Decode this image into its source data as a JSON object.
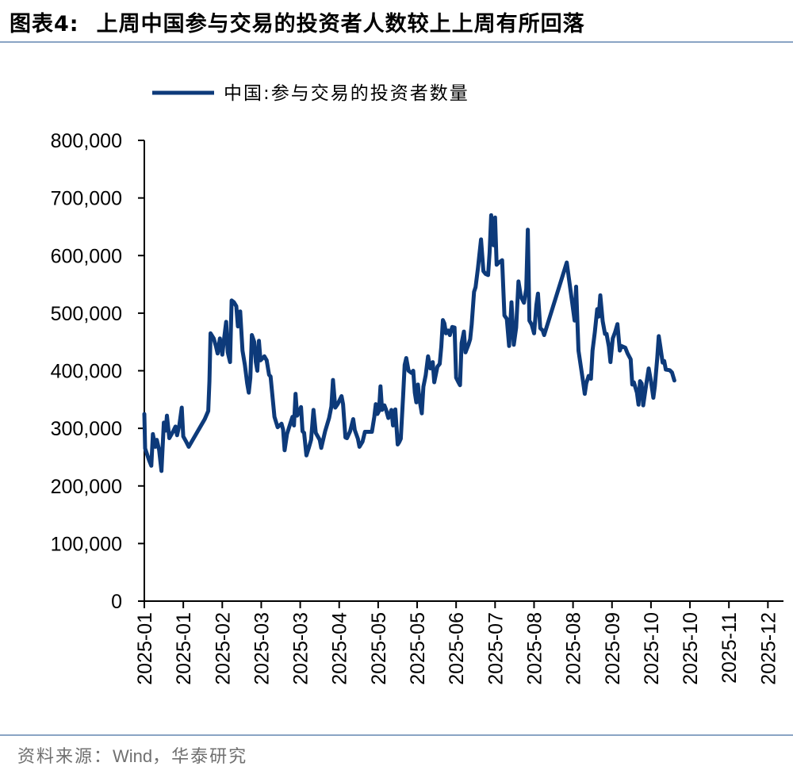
{
  "header": {
    "label": "图表4:",
    "title": "上周中国参与交易的投资者人数较上上周有所回落"
  },
  "footer": {
    "prefix": "资料来源：",
    "source_name": "Wind",
    "sep": "，",
    "org": "华泰研究"
  },
  "colors": {
    "series": "#0d3a7a",
    "axis": "#000000",
    "rule": "#8aa4c4"
  },
  "chart_data": {
    "type": "line",
    "title": "上周中国参与交易的投资者人数较上上周有所回落",
    "xlabel": "",
    "ylabel": "",
    "ylim": [
      0,
      800000
    ],
    "yticks": [
      0,
      100000,
      200000,
      300000,
      400000,
      500000,
      600000,
      700000,
      800000
    ],
    "ytick_labels": [
      "0",
      "100,000",
      "200,000",
      "300,000",
      "400,000",
      "500,000",
      "600,000",
      "700,000",
      "800,000"
    ],
    "xtick_labels": [
      "2025-01",
      "2025-01",
      "2025-02",
      "2025-03",
      "2025-03",
      "2025-04",
      "2025-05",
      "2025-05",
      "2025-06",
      "2025-07",
      "2025-08",
      "2025-08",
      "2025-09",
      "2025-10",
      "2025-10",
      "2025-11",
      "2025-12"
    ],
    "legend": {
      "position": "top-left",
      "entries": [
        "中国:参与交易的投资者数量"
      ]
    },
    "series": [
      {
        "name": "中国:参与交易的投资者数量",
        "x_range": [
          0,
          16.4
        ],
        "values": [
          [
            0.0,
            325000
          ],
          [
            0.02,
            265000
          ],
          [
            0.12,
            245000
          ],
          [
            0.18,
            235000
          ],
          [
            0.22,
            290000
          ],
          [
            0.28,
            268000
          ],
          [
            0.32,
            280000
          ],
          [
            0.38,
            262000
          ],
          [
            0.44,
            226000
          ],
          [
            0.5,
            310000
          ],
          [
            0.55,
            296000
          ],
          [
            0.58,
            322000
          ],
          [
            0.64,
            283000
          ],
          [
            0.74,
            295000
          ],
          [
            0.8,
            303000
          ],
          [
            0.84,
            288000
          ],
          [
            0.9,
            306000
          ],
          [
            0.96,
            336000
          ],
          [
            1.0,
            286000
          ],
          [
            1.08,
            276000
          ],
          [
            1.14,
            268000
          ],
          [
            1.55,
            316000
          ],
          [
            1.64,
            330000
          ],
          [
            1.67,
            382000
          ],
          [
            1.7,
            465000
          ],
          [
            1.78,
            456000
          ],
          [
            1.84,
            442000
          ],
          [
            1.88,
            430000
          ],
          [
            1.94,
            456000
          ],
          [
            2.0,
            428000
          ],
          [
            2.04,
            452000
          ],
          [
            2.1,
            485000
          ],
          [
            2.14,
            432000
          ],
          [
            2.2,
            415000
          ],
          [
            2.24,
            522000
          ],
          [
            2.3,
            519000
          ],
          [
            2.36,
            512000
          ],
          [
            2.4,
            477000
          ],
          [
            2.46,
            503000
          ],
          [
            2.52,
            435000
          ],
          [
            2.58,
            410000
          ],
          [
            2.64,
            378000
          ],
          [
            2.68,
            362000
          ],
          [
            2.72,
            388000
          ],
          [
            2.76,
            462000
          ],
          [
            2.82,
            450000
          ],
          [
            2.86,
            415000
          ],
          [
            2.9,
            400000
          ],
          [
            2.94,
            452000
          ],
          [
            2.98,
            418000
          ],
          [
            3.04,
            422000
          ],
          [
            3.08,
            425000
          ],
          [
            3.14,
            418000
          ],
          [
            3.2,
            393000
          ],
          [
            3.24,
            390000
          ],
          [
            3.34,
            320000
          ],
          [
            3.42,
            302000
          ],
          [
            3.52,
            308000
          ],
          [
            3.56,
            298000
          ],
          [
            3.6,
            262000
          ],
          [
            3.66,
            290000
          ],
          [
            3.74,
            307000
          ],
          [
            3.8,
            320000
          ],
          [
            3.84,
            305000
          ],
          [
            3.88,
            360000
          ],
          [
            3.92,
            322000
          ],
          [
            3.98,
            330000
          ],
          [
            4.02,
            337000
          ],
          [
            4.06,
            295000
          ],
          [
            4.1,
            292000
          ],
          [
            4.16,
            253000
          ],
          [
            4.22,
            266000
          ],
          [
            4.28,
            280000
          ],
          [
            4.34,
            332000
          ],
          [
            4.4,
            292000
          ],
          [
            4.5,
            280000
          ],
          [
            4.54,
            266000
          ],
          [
            4.64,
            295000
          ],
          [
            4.74,
            318000
          ],
          [
            4.8,
            338000
          ],
          [
            4.84,
            384000
          ],
          [
            4.9,
            336000
          ],
          [
            4.96,
            342000
          ],
          [
            5.06,
            356000
          ],
          [
            5.1,
            342000
          ],
          [
            5.16,
            284000
          ],
          [
            5.2,
            283000
          ],
          [
            5.28,
            295000
          ],
          [
            5.36,
            316000
          ],
          [
            5.4,
            297000
          ],
          [
            5.48,
            282000
          ],
          [
            5.52,
            268000
          ],
          [
            5.6,
            277000
          ],
          [
            5.66,
            294000
          ],
          [
            5.78,
            294000
          ],
          [
            5.84,
            294000
          ],
          [
            5.9,
            320000
          ],
          [
            5.94,
            342000
          ],
          [
            5.98,
            325000
          ],
          [
            6.02,
            330000
          ],
          [
            6.06,
            373000
          ],
          [
            6.1,
            332000
          ],
          [
            6.16,
            340000
          ],
          [
            6.2,
            333000
          ],
          [
            6.26,
            318000
          ],
          [
            6.34,
            332000
          ],
          [
            6.38,
            305000
          ],
          [
            6.44,
            333000
          ],
          [
            6.5,
            272000
          ],
          [
            6.54,
            276000
          ],
          [
            6.58,
            282000
          ],
          [
            6.64,
            355000
          ],
          [
            6.68,
            410000
          ],
          [
            6.72,
            422000
          ],
          [
            6.78,
            400000
          ],
          [
            6.86,
            396000
          ],
          [
            6.9,
            400000
          ],
          [
            6.94,
            362000
          ],
          [
            6.98,
            345000
          ],
          [
            7.02,
            376000
          ],
          [
            7.06,
            350000
          ],
          [
            7.12,
            326000
          ],
          [
            7.16,
            372000
          ],
          [
            7.22,
            392000
          ],
          [
            7.28,
            425000
          ],
          [
            7.34,
            404000
          ],
          [
            7.4,
            415000
          ],
          [
            7.44,
            380000
          ],
          [
            7.52,
            407000
          ],
          [
            7.58,
            412000
          ],
          [
            7.62,
            442000
          ],
          [
            7.66,
            488000
          ],
          [
            7.7,
            482000
          ],
          [
            7.74,
            465000
          ],
          [
            7.8,
            470000
          ],
          [
            7.84,
            462000
          ],
          [
            7.9,
            476000
          ],
          [
            7.96,
            475000
          ],
          [
            8.0,
            388000
          ],
          [
            8.06,
            380000
          ],
          [
            8.1,
            375000
          ],
          [
            8.14,
            448000
          ],
          [
            8.2,
            468000
          ],
          [
            8.24,
            432000
          ],
          [
            8.32,
            446000
          ],
          [
            8.36,
            455000
          ],
          [
            8.4,
            480000
          ],
          [
            8.46,
            537000
          ],
          [
            8.5,
            545000
          ],
          [
            8.56,
            578000
          ],
          [
            8.64,
            628000
          ],
          [
            8.7,
            573000
          ],
          [
            8.76,
            568000
          ],
          [
            8.82,
            566000
          ],
          [
            8.86,
            605000
          ],
          [
            8.9,
            670000
          ],
          [
            8.96,
            618000
          ],
          [
            9.0,
            666000
          ],
          [
            9.04,
            584000
          ],
          [
            9.1,
            588000
          ],
          [
            9.18,
            592000
          ],
          [
            9.24,
            496000
          ],
          [
            9.3,
            490000
          ],
          [
            9.36,
            443000
          ],
          [
            9.42,
            519000
          ],
          [
            9.48,
            445000
          ],
          [
            9.54,
            475000
          ],
          [
            9.6,
            555000
          ],
          [
            9.66,
            529000
          ],
          [
            9.74,
            518000
          ],
          [
            9.8,
            542000
          ],
          [
            9.84,
            645000
          ],
          [
            9.88,
            487000
          ],
          [
            9.94,
            480000
          ],
          [
            10.0,
            465000
          ],
          [
            10.06,
            514000
          ],
          [
            10.1,
            534000
          ],
          [
            10.16,
            474000
          ],
          [
            10.22,
            470000
          ],
          [
            10.26,
            462000
          ],
          [
            10.84,
            588000
          ],
          [
            11.04,
            487000
          ],
          [
            11.08,
            546000
          ],
          [
            11.14,
            435000
          ],
          [
            11.2,
            408000
          ],
          [
            11.26,
            380000
          ],
          [
            11.3,
            360000
          ],
          [
            11.34,
            378000
          ],
          [
            11.4,
            391000
          ],
          [
            11.46,
            386000
          ],
          [
            11.5,
            435000
          ],
          [
            11.56,
            467000
          ],
          [
            11.62,
            507000
          ],
          [
            11.66,
            494000
          ],
          [
            11.7,
            531000
          ],
          [
            11.76,
            486000
          ],
          [
            11.82,
            464000
          ],
          [
            11.86,
            464000
          ],
          [
            11.92,
            442000
          ],
          [
            11.96,
            415000
          ],
          [
            12.02,
            456000
          ],
          [
            12.08,
            467000
          ],
          [
            12.14,
            481000
          ],
          [
            12.2,
            435000
          ],
          [
            12.24,
            443000
          ],
          [
            12.34,
            440000
          ],
          [
            12.4,
            430000
          ],
          [
            12.48,
            420000
          ],
          [
            12.52,
            376000
          ],
          [
            12.56,
            380000
          ],
          [
            12.64,
            362000
          ],
          [
            12.68,
            341000
          ],
          [
            12.72,
            382000
          ],
          [
            12.76,
            378000
          ],
          [
            12.8,
            340000
          ],
          [
            12.88,
            377000
          ],
          [
            12.94,
            404000
          ],
          [
            13.0,
            382000
          ],
          [
            13.06,
            353000
          ],
          [
            13.1,
            373000
          ],
          [
            13.16,
            422000
          ],
          [
            13.2,
            460000
          ],
          [
            13.24,
            442000
          ],
          [
            13.3,
            414000
          ],
          [
            13.34,
            417000
          ],
          [
            13.38,
            402000
          ],
          [
            13.48,
            401000
          ],
          [
            13.54,
            397000
          ],
          [
            13.6,
            383000
          ]
        ]
      }
    ]
  }
}
